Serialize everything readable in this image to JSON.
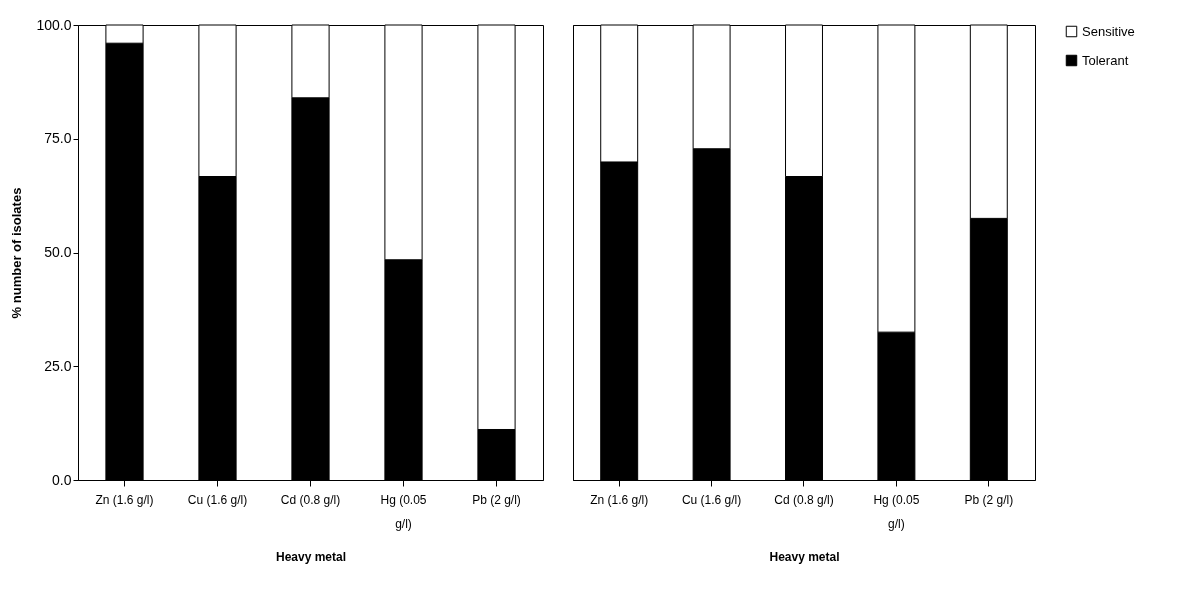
{
  "chart_data": [
    {
      "type": "bar",
      "stacked": true,
      "xlabel": "Heavy metal",
      "ylabel": "% number of isolates",
      "categories": [
        "Zn (1.6 g/l)",
        "Cu (1.6 g/l)",
        "Cd (0.8 g/l)",
        "Hg (0.05 g/l)",
        "Pb (2 g/l)"
      ],
      "ylim": [
        0,
        100
      ],
      "yticks": [
        {
          "value": 0,
          "label": "0.0"
        },
        {
          "value": 25,
          "label": "25.0"
        },
        {
          "value": 50,
          "label": "50.0"
        },
        {
          "value": 75,
          "label": "75.0"
        },
        {
          "value": 100,
          "label": "100.0"
        }
      ],
      "grid": false,
      "legend": false,
      "series": [
        {
          "color": "#000000",
          "values": [
            96,
            66.7,
            84,
            48.4,
            11.1
          ]
        },
        {
          "color": "#ffffff",
          "values": [
            4,
            33.3,
            16,
            51.6,
            88.9
          ]
        }
      ]
    },
    {
      "type": "bar",
      "stacked": true,
      "xlabel": "Heavy metal",
      "categories": [
        "Zn (1.6 g/l)",
        "Cu (1.6 g/l)",
        "Cd (0.8 g/l)",
        "Hg (0.05 g/l)",
        "Pb (2 g/l)"
      ],
      "ylim": [
        0,
        100
      ],
      "tick_labels": "x",
      "grid": false,
      "legend": "right",
      "series": [
        {
          "name": "Tolerant",
          "color": "#000000",
          "values": [
            69.9,
            72.8,
            66.7,
            32.5,
            57.5
          ]
        },
        {
          "name": "Sensitive",
          "color": "#ffffff",
          "values": [
            30.1,
            27.2,
            33.3,
            67.5,
            42.5
          ]
        }
      ]
    }
  ]
}
